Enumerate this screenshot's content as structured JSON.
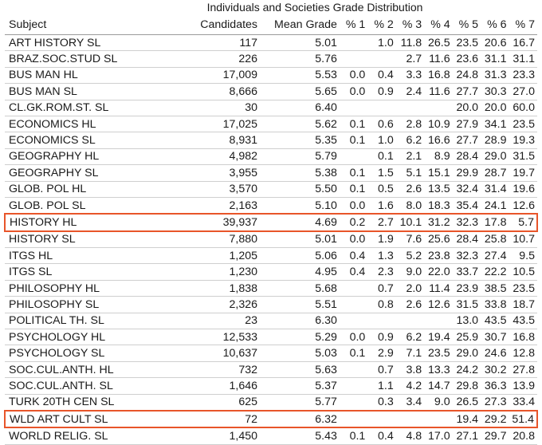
{
  "title": "Individuals and Societies Grade Distribution",
  "columns": [
    "Subject",
    "Candidates",
    "Mean Grade",
    "% 1",
    "% 2",
    "% 3",
    "% 4",
    "% 5",
    "% 6",
    "% 7"
  ],
  "rows": [
    {
      "subject": "ART HISTORY SL",
      "candidates": "117",
      "mean": "5.01",
      "p1": "",
      "p2": "1.0",
      "p3": "11.8",
      "p4": "26.5",
      "p5": "23.5",
      "p6": "20.6",
      "p7": "16.7"
    },
    {
      "subject": "BRAZ.SOC.STUD SL",
      "candidates": "226",
      "mean": "5.76",
      "p1": "",
      "p2": "",
      "p3": "2.7",
      "p4": "11.6",
      "p5": "23.6",
      "p6": "31.1",
      "p7": "31.1"
    },
    {
      "subject": "BUS MAN HL",
      "candidates": "17,009",
      "mean": "5.53",
      "p1": "0.0",
      "p2": "0.4",
      "p3": "3.3",
      "p4": "16.8",
      "p5": "24.8",
      "p6": "31.3",
      "p7": "23.3"
    },
    {
      "subject": "BUS MAN SL",
      "candidates": "8,666",
      "mean": "5.65",
      "p1": "0.0",
      "p2": "0.9",
      "p3": "2.4",
      "p4": "11.6",
      "p5": "27.7",
      "p6": "30.3",
      "p7": "27.0"
    },
    {
      "subject": "CL.GK.ROM.ST. SL",
      "candidates": "30",
      "mean": "6.40",
      "p1": "",
      "p2": "",
      "p3": "",
      "p4": "",
      "p5": "20.0",
      "p6": "20.0",
      "p7": "60.0"
    },
    {
      "subject": "ECONOMICS HL",
      "candidates": "17,025",
      "mean": "5.62",
      "p1": "0.1",
      "p2": "0.6",
      "p3": "2.8",
      "p4": "10.9",
      "p5": "27.9",
      "p6": "34.1",
      "p7": "23.5"
    },
    {
      "subject": "ECONOMICS SL",
      "candidates": "8,931",
      "mean": "5.35",
      "p1": "0.1",
      "p2": "1.0",
      "p3": "6.2",
      "p4": "16.6",
      "p5": "27.7",
      "p6": "28.9",
      "p7": "19.3"
    },
    {
      "subject": "GEOGRAPHY HL",
      "candidates": "4,982",
      "mean": "5.79",
      "p1": "",
      "p2": "0.1",
      "p3": "2.1",
      "p4": "8.9",
      "p5": "28.4",
      "p6": "29.0",
      "p7": "31.5"
    },
    {
      "subject": "GEOGRAPHY SL",
      "candidates": "3,955",
      "mean": "5.38",
      "p1": "0.1",
      "p2": "1.5",
      "p3": "5.1",
      "p4": "15.1",
      "p5": "29.9",
      "p6": "28.7",
      "p7": "19.7"
    },
    {
      "subject": "GLOB. POL HL",
      "candidates": "3,570",
      "mean": "5.50",
      "p1": "0.1",
      "p2": "0.5",
      "p3": "2.6",
      "p4": "13.5",
      "p5": "32.4",
      "p6": "31.4",
      "p7": "19.6"
    },
    {
      "subject": "GLOB. POL SL",
      "candidates": "2,163",
      "mean": "5.10",
      "p1": "0.0",
      "p2": "1.6",
      "p3": "8.0",
      "p4": "18.3",
      "p5": "35.4",
      "p6": "24.1",
      "p7": "12.6"
    },
    {
      "subject": "HISTORY HL",
      "candidates": "39,937",
      "mean": "4.69",
      "p1": "0.2",
      "p2": "2.7",
      "p3": "10.1",
      "p4": "31.2",
      "p5": "32.3",
      "p6": "17.8",
      "p7": "5.7",
      "highlight": true
    },
    {
      "subject": "HISTORY SL",
      "candidates": "7,880",
      "mean": "5.01",
      "p1": "0.0",
      "p2": "1.9",
      "p3": "7.6",
      "p4": "25.6",
      "p5": "28.4",
      "p6": "25.8",
      "p7": "10.7"
    },
    {
      "subject": "ITGS HL",
      "candidates": "1,205",
      "mean": "5.06",
      "p1": "0.4",
      "p2": "1.3",
      "p3": "5.2",
      "p4": "23.8",
      "p5": "32.3",
      "p6": "27.4",
      "p7": "9.5"
    },
    {
      "subject": "ITGS SL",
      "candidates": "1,230",
      "mean": "4.95",
      "p1": "0.4",
      "p2": "2.3",
      "p3": "9.0",
      "p4": "22.0",
      "p5": "33.7",
      "p6": "22.2",
      "p7": "10.5"
    },
    {
      "subject": "PHILOSOPHY HL",
      "candidates": "1,838",
      "mean": "5.68",
      "p1": "",
      "p2": "0.7",
      "p3": "2.0",
      "p4": "11.4",
      "p5": "23.9",
      "p6": "38.5",
      "p7": "23.5"
    },
    {
      "subject": "PHILOSOPHY SL",
      "candidates": "2,326",
      "mean": "5.51",
      "p1": "",
      "p2": "0.8",
      "p3": "2.6",
      "p4": "12.6",
      "p5": "31.5",
      "p6": "33.8",
      "p7": "18.7"
    },
    {
      "subject": "POLITICAL TH. SL",
      "candidates": "23",
      "mean": "6.30",
      "p1": "",
      "p2": "",
      "p3": "",
      "p4": "",
      "p5": "13.0",
      "p6": "43.5",
      "p7": "43.5"
    },
    {
      "subject": "PSYCHOLOGY HL",
      "candidates": "12,533",
      "mean": "5.29",
      "p1": "0.0",
      "p2": "0.9",
      "p3": "6.2",
      "p4": "19.4",
      "p5": "25.9",
      "p6": "30.7",
      "p7": "16.8"
    },
    {
      "subject": "PSYCHOLOGY SL",
      "candidates": "10,637",
      "mean": "5.03",
      "p1": "0.1",
      "p2": "2.9",
      "p3": "7.1",
      "p4": "23.5",
      "p5": "29.0",
      "p6": "24.6",
      "p7": "12.8"
    },
    {
      "subject": "SOC.CUL.ANTH. HL",
      "candidates": "732",
      "mean": "5.63",
      "p1": "",
      "p2": "0.7",
      "p3": "3.8",
      "p4": "13.3",
      "p5": "24.2",
      "p6": "30.2",
      "p7": "27.8"
    },
    {
      "subject": "SOC.CUL.ANTH. SL",
      "candidates": "1,646",
      "mean": "5.37",
      "p1": "",
      "p2": "1.1",
      "p3": "4.2",
      "p4": "14.7",
      "p5": "29.8",
      "p6": "36.3",
      "p7": "13.9"
    },
    {
      "subject": "TURK 20TH CEN SL",
      "candidates": "625",
      "mean": "5.77",
      "p1": "",
      "p2": "0.3",
      "p3": "3.4",
      "p4": "9.0",
      "p5": "26.5",
      "p6": "27.3",
      "p7": "33.4"
    },
    {
      "subject": "WLD ART CULT SL",
      "candidates": "72",
      "mean": "6.32",
      "p1": "",
      "p2": "",
      "p3": "",
      "p4": "",
      "p5": "19.4",
      "p6": "29.2",
      "p7": "51.4",
      "highlight": true
    },
    {
      "subject": "WORLD RELIG. SL",
      "candidates": "1,450",
      "mean": "5.43",
      "p1": "0.1",
      "p2": "0.4",
      "p3": "4.8",
      "p4": "17.0",
      "p5": "27.1",
      "p6": "29.7",
      "p7": "20.8"
    }
  ],
  "highlight_color": "#e8552a"
}
